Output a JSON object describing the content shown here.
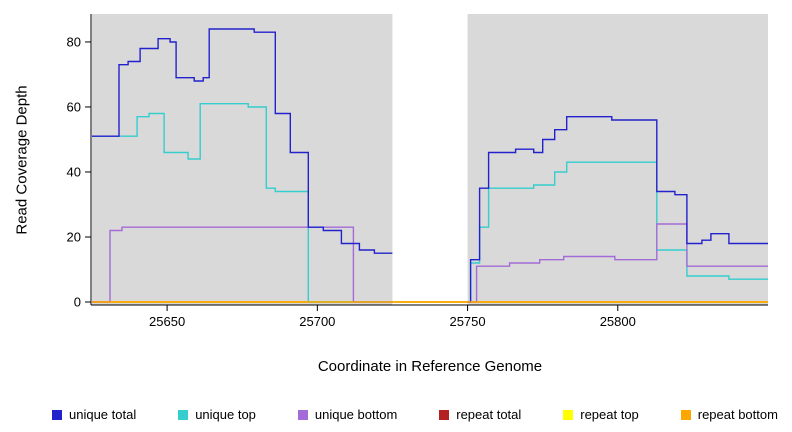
{
  "chart_data": {
    "type": "line",
    "subtype": "step",
    "title": "",
    "xlabel": "Coordinate in Reference Genome",
    "ylabel": "Read Coverage Depth",
    "xlim": [
      25625,
      25850
    ],
    "ylim": [
      0,
      88.6
    ],
    "x_ticks": [
      25650,
      25700,
      25750,
      25800
    ],
    "y_ticks": [
      0,
      20,
      40,
      60,
      80
    ],
    "grid": false,
    "panel_bg": "#d9d9d9",
    "gap_region": {
      "x_start": 25725,
      "x_end": 25750
    },
    "legend_position": "bottom",
    "draw_order": [
      3,
      4,
      1,
      2,
      0,
      5
    ],
    "series": [
      {
        "name": "unique total",
        "color": "#2222CC",
        "segments": [
          {
            "points": [
              [
                25625,
                51
              ],
              [
                25634,
                73
              ],
              [
                25637,
                74
              ],
              [
                25641,
                78
              ],
              [
                25647,
                81
              ],
              [
                25651,
                80
              ],
              [
                25653,
                69
              ],
              [
                25659,
                68
              ],
              [
                25662,
                69
              ],
              [
                25664,
                84
              ],
              [
                25679,
                83
              ],
              [
                25686,
                58
              ],
              [
                25691,
                46
              ],
              [
                25697,
                23
              ],
              [
                25702,
                22
              ],
              [
                25708,
                18
              ],
              [
                25714,
                16
              ],
              [
                25719,
                15
              ],
              [
                25725,
                15
              ]
            ]
          },
          {
            "points": [
              [
                25750,
                0
              ],
              [
                25751,
                13
              ],
              [
                25754,
                35
              ],
              [
                25757,
                46
              ],
              [
                25766,
                47
              ],
              [
                25772,
                46
              ],
              [
                25775,
                50
              ],
              [
                25779,
                53
              ],
              [
                25783,
                57
              ],
              [
                25798,
                56
              ],
              [
                25813,
                34
              ],
              [
                25819,
                33
              ],
              [
                25823,
                18
              ],
              [
                25828,
                19
              ],
              [
                25831,
                21
              ],
              [
                25837,
                18
              ],
              [
                25850,
                18
              ]
            ]
          }
        ]
      },
      {
        "name": "unique top",
        "color": "#35CDCD",
        "segments": [
          {
            "points": [
              [
                25625,
                51
              ],
              [
                25640,
                57
              ],
              [
                25644,
                58
              ],
              [
                25649,
                46
              ],
              [
                25657,
                44
              ],
              [
                25661,
                61
              ],
              [
                25677,
                60
              ],
              [
                25683,
                35
              ],
              [
                25686,
                34
              ],
              [
                25697,
                0
              ],
              [
                25725,
                0
              ]
            ]
          },
          {
            "points": [
              [
                25750,
                0
              ],
              [
                25751,
                12
              ],
              [
                25754,
                23
              ],
              [
                25757,
                35
              ],
              [
                25772,
                36
              ],
              [
                25779,
                40
              ],
              [
                25783,
                43
              ],
              [
                25813,
                16
              ],
              [
                25823,
                8
              ],
              [
                25837,
                7
              ],
              [
                25850,
                7
              ]
            ]
          }
        ]
      },
      {
        "name": "unique bottom",
        "color": "#A36BD8",
        "segments": [
          {
            "points": [
              [
                25625,
                0
              ],
              [
                25631,
                22
              ],
              [
                25635,
                23
              ],
              [
                25711,
                23
              ],
              [
                25712,
                0
              ],
              [
                25725,
                0
              ]
            ]
          },
          {
            "points": [
              [
                25750,
                0
              ],
              [
                25753,
                11
              ],
              [
                25764,
                12
              ],
              [
                25774,
                13
              ],
              [
                25782,
                14
              ],
              [
                25799,
                13
              ],
              [
                25813,
                24
              ],
              [
                25823,
                11
              ],
              [
                25850,
                11
              ]
            ]
          }
        ]
      },
      {
        "name": "repeat total",
        "color": "#B22222",
        "segments": [
          {
            "points": [
              [
                25625,
                0
              ],
              [
                25850,
                0
              ]
            ]
          }
        ]
      },
      {
        "name": "repeat top",
        "color": "#FFFF00",
        "segments": [
          {
            "points": [
              [
                25625,
                0
              ],
              [
                25850,
                0
              ]
            ]
          }
        ]
      },
      {
        "name": "repeat bottom",
        "color": "#FFA500",
        "segments": [
          {
            "points": [
              [
                25625,
                0
              ],
              [
                25850,
                0
              ]
            ]
          }
        ]
      }
    ],
    "legend": [
      {
        "label": "unique total",
        "color": "#2222CC"
      },
      {
        "label": "unique top",
        "color": "#35CDCD"
      },
      {
        "label": "unique bottom",
        "color": "#A36BD8"
      },
      {
        "label": "repeat total",
        "color": "#B22222"
      },
      {
        "label": "repeat top",
        "color": "#FFFF00"
      },
      {
        "label": "repeat bottom",
        "color": "#FFA500"
      }
    ]
  }
}
